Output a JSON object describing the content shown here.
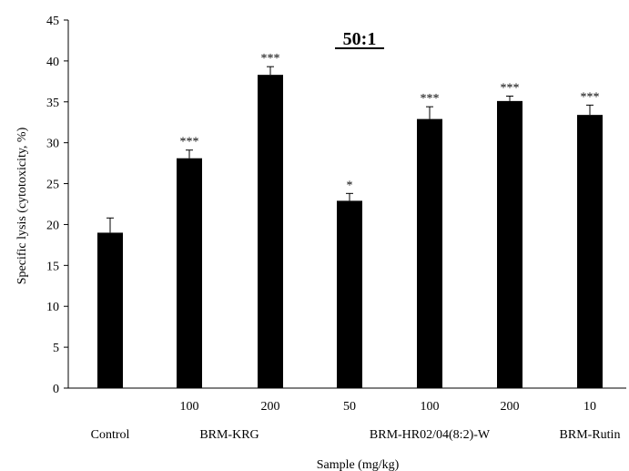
{
  "chart_data": {
    "type": "bar",
    "title": "50:1",
    "xlabel": "Sample (mg/kg)",
    "ylabel": "Specific lysis (cytotoxicity, %)",
    "ylim": [
      0,
      45
    ],
    "yticks": [
      0,
      5,
      10,
      15,
      20,
      25,
      30,
      35,
      40,
      45
    ],
    "grid": false,
    "bar_color": "#000000",
    "categories": [
      "",
      "100",
      "200",
      "50",
      "100",
      "200",
      "10"
    ],
    "groups": [
      {
        "label": "Control"
      },
      {
        "label": "BRM-KRG"
      },
      {
        "label": "BRM-HR02/04(8:2)-W"
      },
      {
        "label": "BRM-Rutin"
      }
    ],
    "values": [
      19.0,
      28.1,
      38.3,
      22.9,
      32.9,
      35.1,
      33.4
    ],
    "errors": [
      1.8,
      1.0,
      1.0,
      0.9,
      1.5,
      0.6,
      1.2
    ],
    "significance": [
      "",
      "***",
      "***",
      "*",
      "***",
      "***",
      "***"
    ]
  }
}
